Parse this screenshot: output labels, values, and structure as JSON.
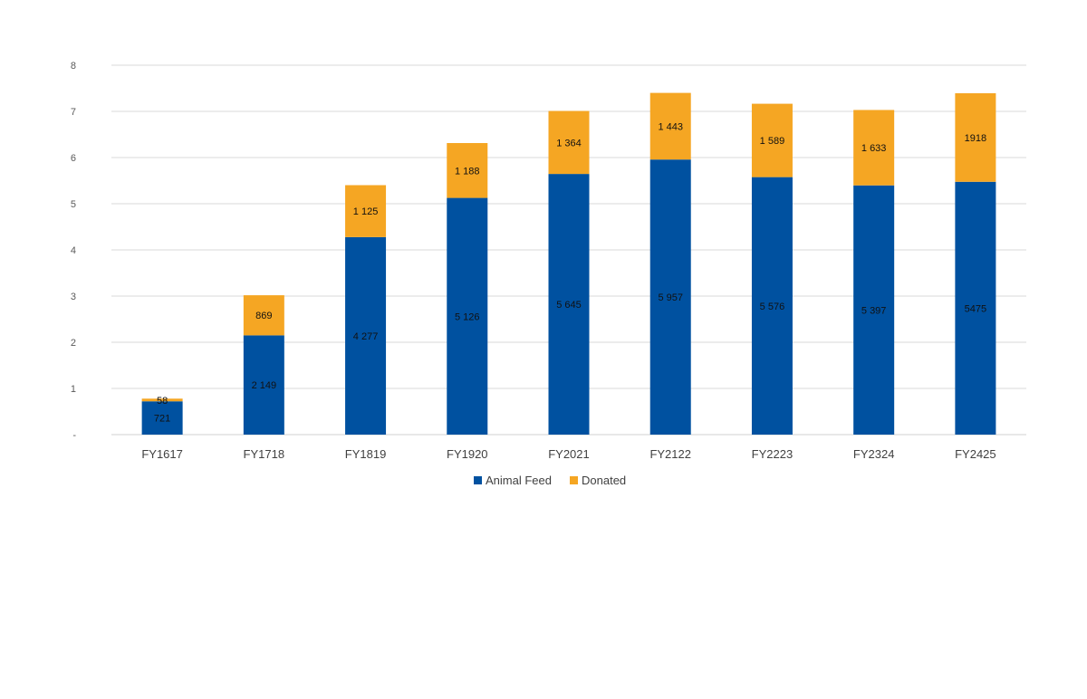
{
  "chart_data": {
    "type": "bar",
    "stacked": true,
    "title": "",
    "xlabel": "",
    "ylabel": "",
    "ylim": [
      0,
      8
    ],
    "y_ticks": [
      "-",
      "1",
      "2",
      "3",
      "4",
      "5",
      "6",
      "7",
      "8"
    ],
    "grid": true,
    "legend_position": "bottom",
    "categories": [
      "FY1617",
      "FY1718",
      "FY1819",
      "FY1920",
      "FY2021",
      "FY2122",
      "FY2223",
      "FY2324",
      "FY2425"
    ],
    "series": [
      {
        "name": "Animal Feed",
        "color": "#0051A0",
        "values": [
          0.721,
          2.149,
          4.277,
          5.126,
          5.645,
          5.957,
          5.576,
          5.397,
          5.475
        ],
        "labels": [
          "721",
          "2 149",
          "4 277",
          "5 126",
          "5 645",
          "5 957",
          "5 576",
          "5 397",
          "5475"
        ]
      },
      {
        "name": "Donated",
        "color": "#F5A623",
        "values": [
          0.058,
          0.869,
          1.125,
          1.188,
          1.364,
          1.443,
          1.589,
          1.633,
          1.918
        ],
        "labels": [
          "58",
          "869",
          "1 125",
          "1 188",
          "1 364",
          "1 443",
          "1 589",
          "1 633",
          "1918"
        ]
      }
    ]
  }
}
